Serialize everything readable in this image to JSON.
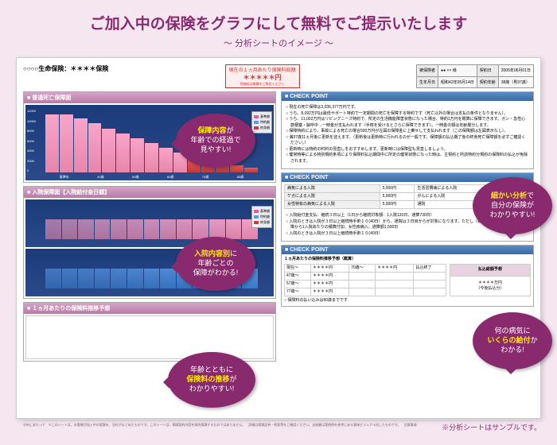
{
  "title": "ご加入中の保険をグラフにして無料でご提示いたします",
  "subtitle": "～ 分析シートのイメージ ～",
  "sheet_title": "○○○○生命保険：＊＊＊＊保険",
  "price_label": "現在の１ヵ月あたり保険料総額",
  "price_value": "＊＊＊＊＊円",
  "price_note": "保険料は概算をご負担ください",
  "info": {
    "r1c1": "被保険者",
    "r1c2": "●● ×× 様",
    "r1c3": "契約日",
    "r1c4": "2005年06月01日",
    "r2c1": "生年月日",
    "r2c2": "昭和42年05月14日",
    "r2c3": "契約年齢",
    "r2c4": "38歳（男37歳）"
  },
  "sec1_title": "普通死亡保障図",
  "sec2_title": "入院保障図【入院給付金日額】",
  "sec3_title": "１ヵ月あたりの保険料推移予想",
  "cp_title": "CHECK POINT",
  "cp1_items": [
    "現在の死亡保障は3,036,377万円です。",
    "うち、8,092万円は最低サポート特約で一定期間の死亡を保障する特約です（死亡以外の場合は支払の条件となりません）。",
    "うち、11,002万円はリビングニーズ特約で、所定の生活機能障害状態になった場合、特約1万円を概算に保障できます。ガン・急性心筋梗塞・脳卒中→一時金が支払われます（手術を受けるとさらに保障できます）。一時金の額は年齢層分します。",
    "保障特約により、事故による死亡の場合500万円が左図の保障金に上乗せして支払われます（この保障額は左図表示なし）。",
    "満37歳11ヵ月後に更新を迎えます。（更新後は更新時に行われるのが一般です。保障額の払込期了後の終身死亡保障額を必ずご確認ください。）",
    "更新時には特約の料料の見直しをおすすめします。更新時には保障型も見直しましょう。",
    "健常時等による特別規約条項により保険料払込期間中に所定の健常状態になった時は、主契約と所該特約分規約の保険料の払込が免除されます。"
  ],
  "cp2_table": [
    [
      "病気による入院",
      "5,000円",
      "生活習慣病による入院",
      "5,000円"
    ],
    [
      "ケガによる入院",
      "5,000円",
      "がんによる入院",
      "5,000円"
    ],
    [
      "女性特有の病気による入院",
      "5,000円",
      "通院",
      "1,000円"
    ]
  ],
  "cp2_notes": [
    "入院給付金支払：継続３日以上（1日から継続対象額：1入院120日、通算730日）",
    "入院のときは入院が３日以上継続時手術１０(40日）から、通院は３日目からが対象になります。ただし（初回）(平成18年04月01日以降から1入院あたりの積算付加、女性疾病入、通算額1,500日",
    "入院のときは入院が３日以上継続時手術１０(40日）"
  ],
  "cp3_title": "１ヵ月あたりの保険料推移予想（概算）",
  "cp3_rows": [
    [
      "現在～",
      "＊＊＊＊円",
      "70歳～",
      "＊＊＊＊円",
      "払込終了"
    ],
    [
      "47歳～",
      "＊＊＊＊円",
      "",
      "",
      ""
    ],
    [
      "57歳～",
      "＊＊＊＊円",
      "",
      "",
      ""
    ],
    [
      "77歳～",
      "＊＊＊＊円",
      "",
      "",
      ""
    ]
  ],
  "cp3_right_header": "払込総額予想",
  "cp3_right_val": "＊＊＊＊万円",
  "cp3_right_note": "（今後払込分）",
  "cp3_note": "保険料の払い込みは80歳までです",
  "callout1": {
    "p1": "保障内容",
    "p2": "が\n年齢での経過で\n見やすい!"
  },
  "callout2": {
    "p1": "入院内容別",
    "p2": "に\n年齢ごとの\n保障がわかる!"
  },
  "callout3": {
    "p1": "",
    "p2": "年齢とともに\n",
    "p3": "保険料の推移",
    "p4": "が\nわかりやすい!"
  },
  "callout4": {
    "p1": "細かい分析",
    "p2": "で\n自分の保険が\nわかりやすい!"
  },
  "callout5": {
    "p1": "",
    "p2": "何の病気に\n",
    "p3": "いくらの給付",
    "p4": "か\nわかる!"
  },
  "footnote": "※分析シートはサンプルです。",
  "disclaimer": "分析にあたって　※このシートは、お客様が加入中の保険を、当社がまとめたものです。このシートは、保険契約内容を知的保障するものではありません。　詳細は保険証券・約款等をご確認ください。支給額は契約時を参考にある意味ビジュアル化したものです。　注意事項",
  "chart1": {
    "y_labels": [
      "12000",
      "10000",
      "8000",
      "6000",
      "4000",
      "2000",
      "0"
    ],
    "x_labels": [
      "基準年",
      "40歳",
      "50歳",
      "60歳",
      "70歳",
      "80歳"
    ],
    "bars": [
      {
        "h": 95,
        "c": "pink"
      },
      {
        "h": 95,
        "c": "pink"
      },
      {
        "h": 88,
        "c": "pink"
      },
      {
        "h": 80,
        "c": "pink"
      },
      {
        "h": 72,
        "c": "pink"
      },
      {
        "h": 64,
        "c": "pink"
      },
      {
        "h": 56,
        "c": "pink"
      },
      {
        "h": 48,
        "c": "pink"
      },
      {
        "h": 40,
        "c": "pink"
      },
      {
        "h": 32,
        "c": "pink"
      },
      {
        "h": 24,
        "c": "red"
      },
      {
        "h": 20,
        "c": "red"
      },
      {
        "h": 16,
        "c": "red"
      },
      {
        "h": 12,
        "c": "red"
      },
      {
        "h": 8,
        "c": "red"
      }
    ]
  },
  "chart2a": {
    "bars": [
      {
        "h": 60
      },
      {
        "h": 60
      },
      {
        "h": 60
      },
      {
        "h": 60
      },
      {
        "h": 60
      },
      {
        "h": 60
      },
      {
        "h": 60
      },
      {
        "h": 60
      },
      {
        "h": 60
      },
      {
        "h": 60
      },
      {
        "h": 60
      },
      {
        "h": 60
      },
      {
        "h": 60
      }
    ]
  },
  "chart2b": {
    "bars": [
      {
        "h": 60
      },
      {
        "h": 60
      },
      {
        "h": 60
      },
      {
        "h": 60
      },
      {
        "h": 60
      },
      {
        "h": 60
      },
      {
        "h": 60
      },
      {
        "h": 60
      },
      {
        "h": 60
      },
      {
        "h": 60
      },
      {
        "h": 60
      },
      {
        "h": 60
      },
      {
        "h": 60
      }
    ]
  },
  "legend_items": [
    "基準額",
    "特約額",
    "終身額"
  ]
}
